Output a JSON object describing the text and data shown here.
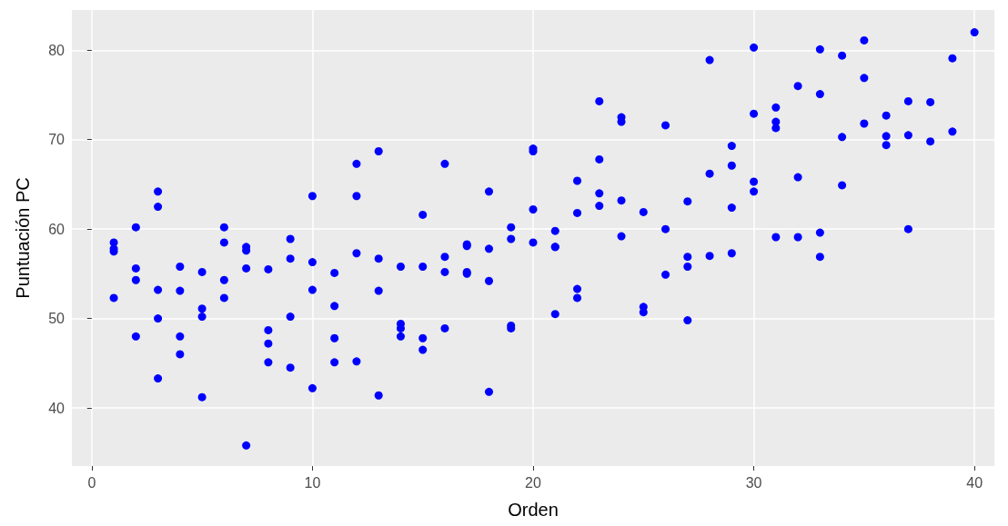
{
  "chart_data": {
    "type": "scatter",
    "xlabel": "Orden",
    "ylabel": "Puntuación PC",
    "x": [
      1,
      1,
      1,
      1,
      2,
      2,
      2,
      2,
      3,
      3,
      3,
      3,
      3,
      4,
      4,
      4,
      4,
      5,
      5,
      5,
      5,
      6,
      6,
      6,
      6,
      7,
      7,
      7,
      7,
      8,
      8,
      8,
      8,
      9,
      9,
      9,
      9,
      10,
      10,
      10,
      10,
      11,
      11,
      11,
      11,
      12,
      12,
      12,
      12,
      13,
      13,
      13,
      13,
      14,
      14,
      14,
      14,
      15,
      15,
      15,
      15,
      16,
      16,
      16,
      16,
      17,
      17,
      17,
      17,
      18,
      18,
      18,
      18,
      19,
      19,
      19,
      19,
      20,
      20,
      20,
      20,
      21,
      21,
      21,
      21,
      22,
      22,
      22,
      22,
      23,
      23,
      23,
      23,
      24,
      24,
      24,
      24,
      25,
      25,
      25,
      26,
      26,
      26,
      27,
      27,
      27,
      27,
      28,
      28,
      28,
      29,
      29,
      29,
      29,
      30,
      30,
      30,
      30,
      31,
      31,
      31,
      31,
      32,
      32,
      32,
      33,
      33,
      33,
      33,
      34,
      34,
      34,
      35,
      35,
      35,
      36,
      36,
      36,
      37,
      37,
      37,
      38,
      38,
      39,
      39,
      40
    ],
    "values": [
      58.5,
      57.8,
      57.5,
      52.3,
      60.2,
      55.6,
      54.3,
      48.0,
      64.2,
      62.5,
      53.2,
      50.0,
      43.3,
      55.8,
      53.1,
      48.0,
      46.0,
      55.2,
      51.1,
      50.2,
      41.2,
      60.2,
      58.5,
      54.3,
      52.3,
      58.0,
      57.6,
      55.6,
      35.8,
      55.5,
      48.7,
      47.2,
      45.1,
      58.9,
      56.7,
      50.2,
      44.5,
      63.7,
      56.3,
      53.2,
      42.2,
      55.1,
      51.4,
      47.8,
      45.1,
      67.3,
      63.7,
      57.3,
      45.2,
      68.7,
      56.7,
      53.1,
      41.4,
      55.8,
      49.4,
      48.9,
      48.0,
      61.6,
      55.8,
      47.8,
      46.5,
      67.3,
      56.9,
      55.2,
      48.9,
      58.3,
      58.1,
      55.2,
      55.0,
      64.2,
      57.8,
      54.2,
      41.8,
      60.2,
      58.9,
      49.2,
      48.9,
      69.0,
      68.7,
      62.2,
      58.5,
      59.8,
      58.0,
      58.0,
      50.5,
      65.4,
      61.8,
      53.3,
      52.3,
      74.3,
      67.8,
      64.0,
      62.6,
      72.5,
      72.0,
      63.2,
      59.2,
      61.9,
      51.3,
      50.7,
      71.6,
      60.0,
      54.9,
      63.1,
      56.9,
      55.8,
      49.8,
      78.9,
      66.2,
      57.0,
      69.3,
      67.1,
      62.4,
      57.3,
      80.3,
      72.9,
      65.3,
      64.2,
      73.6,
      72.0,
      71.3,
      59.1,
      76.0,
      65.8,
      59.1,
      80.1,
      75.1,
      59.6,
      56.9,
      79.4,
      70.3,
      64.9,
      81.1,
      76.9,
      71.8,
      72.7,
      70.4,
      69.4,
      74.3,
      70.5,
      60.0,
      74.2,
      69.8,
      79.1,
      70.9,
      82.0
    ],
    "color": "#0000ff",
    "marker": "circle",
    "xlim": [
      -0.9,
      40.9
    ],
    "xticks": [
      0,
      10,
      20,
      30,
      40
    ],
    "ylim": [
      33.5,
      84.5
    ],
    "yticks": [
      40,
      50,
      60,
      70,
      80
    ],
    "grid": true
  }
}
